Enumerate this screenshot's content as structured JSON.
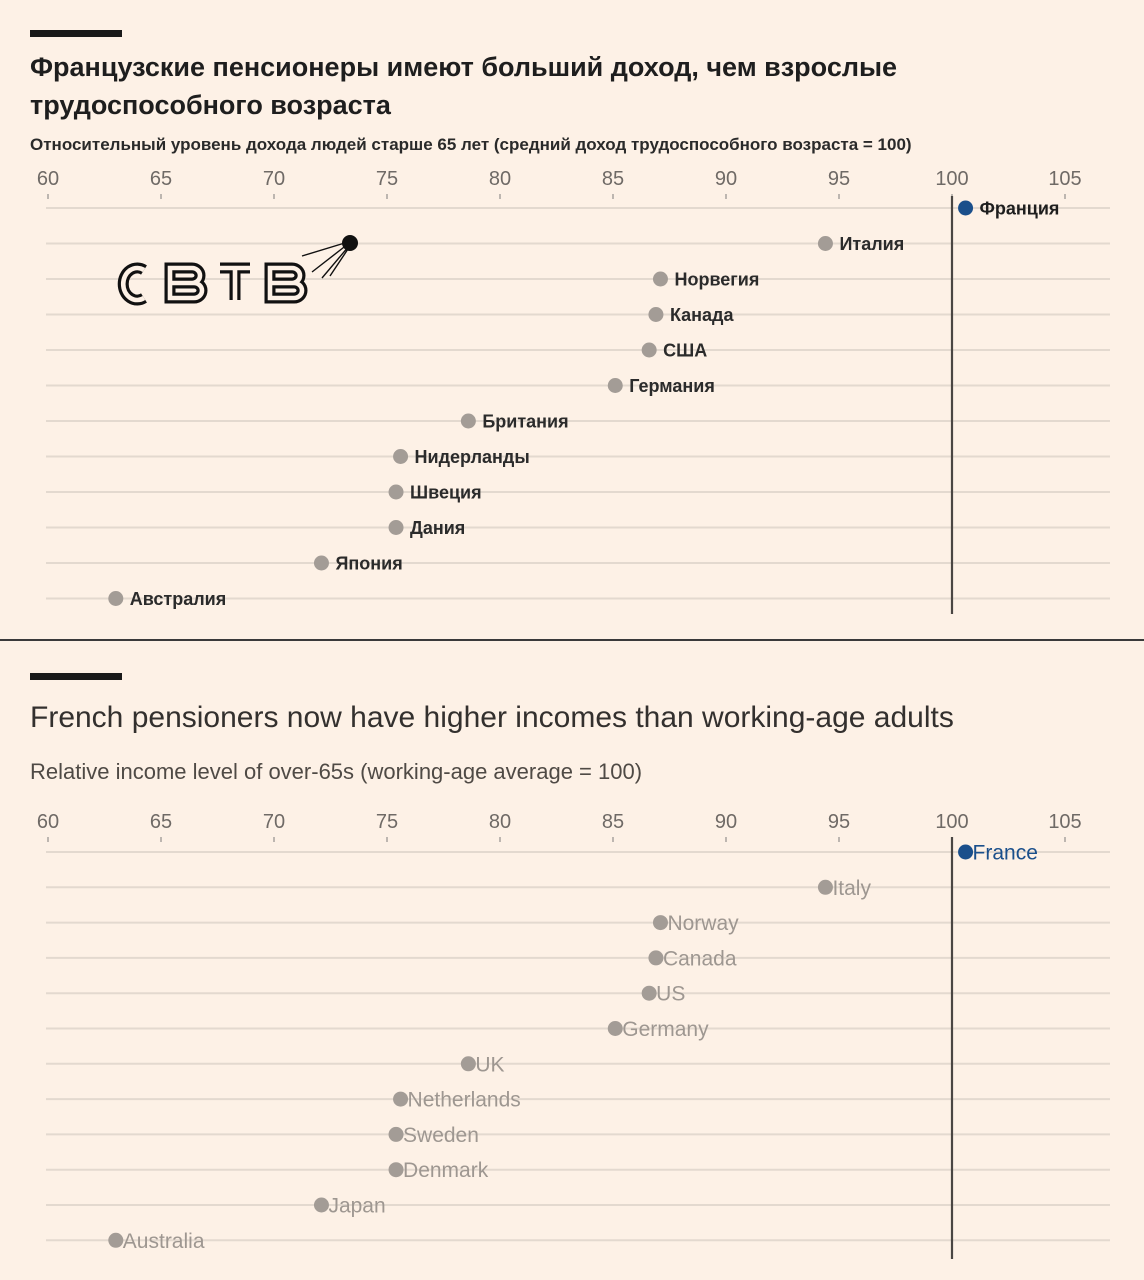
{
  "panels": [
    {
      "title": "Французские пенсионеры имеют больший доход, чем взрослые трудоспособного возраста",
      "subtitle": "Относительный уровень дохода людей старше 65 лет (средний доход трудоспособного возраста = 100)",
      "logo_text": "CBTB",
      "chart_data": {
        "type": "scatter",
        "xlim": [
          60,
          105
        ],
        "ticks": [
          60,
          65,
          70,
          75,
          80,
          85,
          90,
          95,
          100,
          105
        ],
        "reference_line": 100,
        "grid": true,
        "highlight_color": "#1a4f8b",
        "point_color": "#a39c96",
        "points": [
          {
            "label": "Франция",
            "value": 100.6,
            "highlight": true
          },
          {
            "label": "Италия",
            "value": 94.4
          },
          {
            "label": "Норвегия",
            "value": 87.1
          },
          {
            "label": "Канада",
            "value": 86.9
          },
          {
            "label": "США",
            "value": 86.6
          },
          {
            "label": "Германия",
            "value": 85.1
          },
          {
            "label": "Британия",
            "value": 78.6
          },
          {
            "label": "Нидерланды",
            "value": 75.6
          },
          {
            "label": "Швеция",
            "value": 75.4
          },
          {
            "label": "Дания",
            "value": 75.4
          },
          {
            "label": "Япония",
            "value": 72.1
          },
          {
            "label": "Австралия",
            "value": 63.0
          }
        ]
      }
    },
    {
      "title": "French pensioners now have higher incomes than working-age adults",
      "subtitle": "Relative income level of over-65s (working-age average = 100)",
      "chart_data": {
        "type": "scatter",
        "xlim": [
          60,
          105
        ],
        "ticks": [
          60,
          65,
          70,
          75,
          80,
          85,
          90,
          95,
          100,
          105
        ],
        "reference_line": 100,
        "grid": true,
        "highlight_color": "#1a4f8b",
        "point_color": "#a39c96",
        "points": [
          {
            "label": "France",
            "value": 100.6,
            "highlight": true
          },
          {
            "label": "Italy",
            "value": 94.4
          },
          {
            "label": "Norway",
            "value": 87.1
          },
          {
            "label": "Canada",
            "value": 86.9
          },
          {
            "label": "US",
            "value": 86.6
          },
          {
            "label": "Germany",
            "value": 85.1
          },
          {
            "label": "UK",
            "value": 78.6
          },
          {
            "label": "Netherlands",
            "value": 75.6
          },
          {
            "label": "Sweden",
            "value": 75.4
          },
          {
            "label": "Denmark",
            "value": 75.4
          },
          {
            "label": "Japan",
            "value": 72.1
          },
          {
            "label": "Australia",
            "value": 63.0
          }
        ]
      }
    }
  ]
}
